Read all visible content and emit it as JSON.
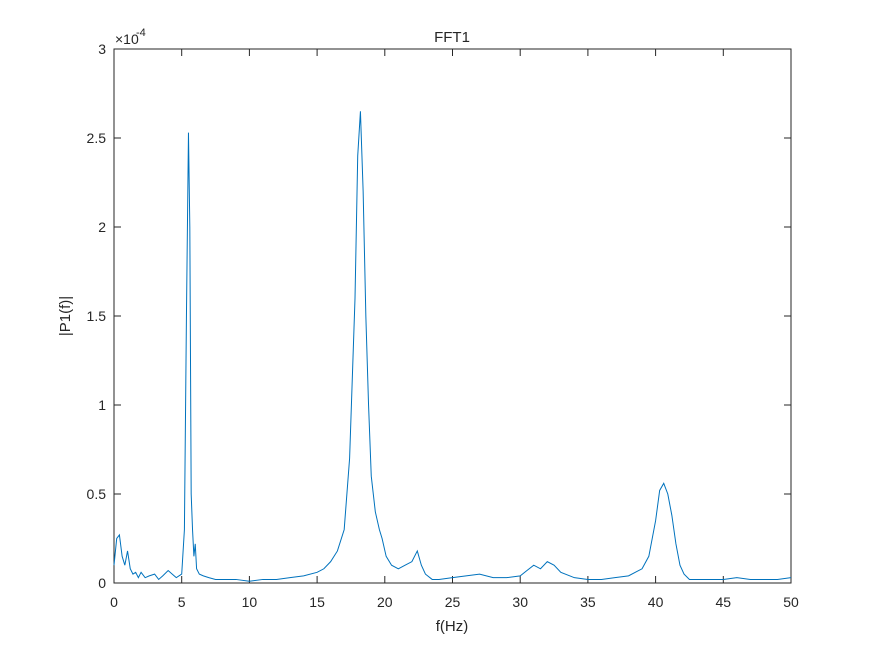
{
  "chart_data": {
    "type": "line",
    "title": "FFT1",
    "xlabel": "f(Hz)",
    "ylabel": "|P1(f)|",
    "xlim": [
      0,
      50
    ],
    "ylim": [
      0,
      3
    ],
    "xticks": [
      0,
      5,
      10,
      15,
      20,
      25,
      30,
      35,
      40,
      45,
      50
    ],
    "yticks": [
      0,
      0.5,
      1,
      1.5,
      2,
      2.5,
      3
    ],
    "y_exponent_base": "×10",
    "y_exponent": "-4",
    "grid": false,
    "colors": {
      "line": "#0072BD",
      "axes": "#262626"
    },
    "series": [
      {
        "values_note_unit": "×1e-4",
        "x": [
          0,
          0.2,
          0.4,
          0.6,
          0.8,
          1.0,
          1.2,
          1.4,
          1.6,
          1.8,
          2.0,
          2.3,
          2.6,
          3.0,
          3.3,
          3.6,
          4.0,
          4.3,
          4.6,
          5.0,
          5.2,
          5.35,
          5.5,
          5.6,
          5.7,
          5.8,
          5.9,
          6.0,
          6.1,
          6.3,
          6.6,
          7.0,
          7.5,
          8.0,
          9.0,
          10.0,
          11.0,
          12.0,
          13.0,
          14.0,
          15.0,
          15.5,
          16.0,
          16.5,
          17.0,
          17.4,
          17.8,
          18.0,
          18.2,
          18.4,
          18.6,
          18.8,
          19.0,
          19.3,
          19.6,
          19.8,
          20.1,
          20.5,
          21.0,
          21.5,
          22.0,
          22.4,
          22.7,
          23.0,
          23.5,
          24.0,
          25.0,
          26.0,
          27.0,
          28.0,
          29.0,
          30.0,
          30.5,
          31.0,
          31.5,
          32.0,
          32.5,
          33.0,
          34.0,
          35.0,
          36.0,
          37.0,
          38.0,
          39.0,
          39.5,
          40.0,
          40.3,
          40.6,
          40.9,
          41.2,
          41.5,
          41.8,
          42.1,
          42.5,
          43.0,
          44.0,
          45.0,
          46.0,
          47.0,
          48.0,
          49.0,
          50.0
        ],
        "values": [
          0.1,
          0.25,
          0.27,
          0.15,
          0.1,
          0.18,
          0.08,
          0.05,
          0.06,
          0.03,
          0.06,
          0.03,
          0.04,
          0.05,
          0.02,
          0.04,
          0.07,
          0.05,
          0.03,
          0.05,
          0.3,
          1.5,
          2.53,
          2.0,
          0.5,
          0.3,
          0.15,
          0.22,
          0.08,
          0.05,
          0.04,
          0.03,
          0.02,
          0.02,
          0.02,
          0.01,
          0.02,
          0.02,
          0.03,
          0.04,
          0.06,
          0.08,
          0.12,
          0.18,
          0.3,
          0.7,
          1.6,
          2.4,
          2.65,
          2.2,
          1.5,
          1.0,
          0.6,
          0.4,
          0.3,
          0.25,
          0.15,
          0.1,
          0.08,
          0.1,
          0.12,
          0.18,
          0.1,
          0.05,
          0.02,
          0.02,
          0.03,
          0.04,
          0.05,
          0.03,
          0.03,
          0.04,
          0.07,
          0.1,
          0.08,
          0.12,
          0.1,
          0.06,
          0.03,
          0.02,
          0.02,
          0.03,
          0.04,
          0.08,
          0.15,
          0.35,
          0.52,
          0.56,
          0.5,
          0.38,
          0.22,
          0.1,
          0.05,
          0.02,
          0.02,
          0.02,
          0.02,
          0.03,
          0.02,
          0.02,
          0.02,
          0.03
        ]
      }
    ]
  }
}
